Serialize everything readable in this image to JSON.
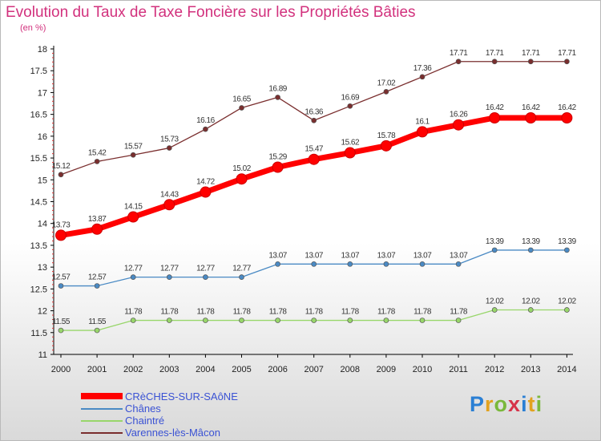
{
  "title": "Evolution du Taux de Taxe Foncière sur les Propriétés Bâties",
  "unit": "(en %)",
  "logo_text": "Proxiti",
  "chart_data": {
    "type": "line",
    "x": [
      "2000",
      "2001",
      "2002",
      "2003",
      "2004",
      "2005",
      "2006",
      "2007",
      "2008",
      "2009",
      "2010",
      "2011",
      "2012",
      "2013",
      "2014"
    ],
    "ylim": [
      11,
      18
    ],
    "yticks": [
      "11",
      "11.5",
      "12",
      "12.5",
      "13",
      "13.5",
      "14",
      "14.5",
      "15",
      "15.5",
      "16",
      "16.5",
      "17",
      "17.5",
      "18"
    ],
    "grid": false,
    "legend": "bottom-left",
    "series": [
      {
        "name": "CRèCHES-SUR-SAôNE",
        "color": "#ff0000",
        "values": [
          13.73,
          13.87,
          14.15,
          14.43,
          14.72,
          15.02,
          15.29,
          15.47,
          15.62,
          15.78,
          16.1,
          16.26,
          16.42,
          16.42,
          16.42
        ],
        "labels": [
          "13.73",
          "13.87",
          "14.15",
          "14.43",
          "14.72",
          "15.02",
          "15.29",
          "15.47",
          "15.62",
          "15.78",
          "16.1",
          "16.26",
          "16.42",
          "16.42",
          "16.42"
        ]
      },
      {
        "name": "Chânes",
        "color": "#4a8ac4",
        "values": [
          12.57,
          12.57,
          12.77,
          12.77,
          12.77,
          12.77,
          13.07,
          13.07,
          13.07,
          13.07,
          13.07,
          13.07,
          13.39,
          13.39,
          13.39
        ],
        "labels": [
          "12.57",
          "12.57",
          "12.77",
          "12.77",
          "12.77",
          "12.77",
          "13.07",
          "13.07",
          "13.07",
          "13.07",
          "13.07",
          "13.07",
          "13.39",
          "13.39",
          "13.39"
        ]
      },
      {
        "name": "Chaintré",
        "color": "#98d66a",
        "values": [
          11.55,
          11.55,
          11.78,
          11.78,
          11.78,
          11.78,
          11.78,
          11.78,
          11.78,
          11.78,
          11.78,
          11.78,
          12.02,
          12.02,
          12.02
        ],
        "labels": [
          "11.55",
          "11.55",
          "11.78",
          "11.78",
          "11.78",
          "11.78",
          "11.78",
          "11.78",
          "11.78",
          "11.78",
          "11.78",
          "11.78",
          "12.02",
          "12.02",
          "12.02"
        ]
      },
      {
        "name": "Varennes-lès-Mâcon",
        "color": "#7a2e2e",
        "values": [
          15.12,
          15.42,
          15.57,
          15.73,
          16.16,
          16.65,
          16.89,
          16.36,
          16.69,
          17.02,
          17.36,
          17.71,
          17.71,
          17.71,
          17.71
        ],
        "labels": [
          "15.12",
          "15.42",
          "15.57",
          "15.73",
          "16.16",
          "16.65",
          "16.89",
          "16.36",
          "16.69",
          "17.02",
          "17.36",
          "17.71",
          "17.71",
          "17.71",
          "17.71"
        ]
      }
    ]
  }
}
